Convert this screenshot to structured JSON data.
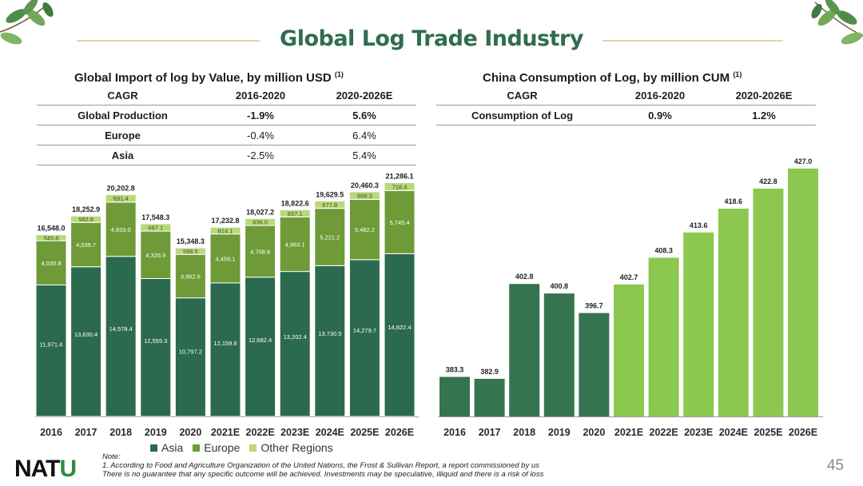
{
  "header": {
    "title": "Global Log Trade Industry"
  },
  "left": {
    "subtitle": "Global Import of log by Value, by million USD",
    "footnote_ref": "(1)",
    "table": {
      "headers": [
        "CAGR",
        "2016-2020",
        "2020-2026E"
      ],
      "rows": [
        [
          "Global Production",
          "-1.9%",
          "5.6%"
        ],
        [
          "Europe",
          "-0.4%",
          "6.4%"
        ],
        [
          "Asia",
          "-2.5%",
          "5.4%"
        ]
      ]
    }
  },
  "right": {
    "subtitle": "China Consumption of Log, by million CUM",
    "footnote_ref": "(1)",
    "table": {
      "headers": [
        "CAGR",
        "2016-2020",
        "2020-2026E"
      ],
      "rows": [
        [
          "Consumption of Log",
          "0.9%",
          "1.2%"
        ]
      ]
    }
  },
  "legend": {
    "asia": "Asia",
    "europe": "Europe",
    "other": "Other Regions"
  },
  "colors": {
    "asia": "#2b6a4f",
    "europe": "#6f9a38",
    "other": "#b7d979",
    "china_hist": "#36744f",
    "china_fore": "#8cc84f",
    "title": "#2f6d4f"
  },
  "chart_data": [
    {
      "type": "bar",
      "stacked": true,
      "title": "Global Import of log by Value, by million USD",
      "xlabel": "",
      "ylabel": "",
      "categories": [
        "2016",
        "2017",
        "2018",
        "2019",
        "2020",
        "2021E",
        "2022E",
        "2023E",
        "2024E",
        "2025E",
        "2026E"
      ],
      "series": [
        {
          "name": "Asia",
          "values": [
            11971.4,
            13630.4,
            14578.4,
            12555.3,
            10797.2,
            12159.6,
            12682.4,
            13202.4,
            13730.5,
            14279.7,
            14822.4
          ]
        },
        {
          "name": "Europe",
          "values": [
            4030.8,
            4039.7,
            4933.0,
            4325.9,
            3962.6,
            4459.1,
            4708.8,
            4963.1,
            5221.2,
            5482.2,
            5745.4
          ]
        },
        {
          "name": "Other Regions",
          "values": [
            545.8,
            582.8,
            691.4,
            667.1,
            588.5,
            614.1,
            636.0,
            657.1,
            677.8,
            698.3,
            718.4
          ]
        }
      ],
      "labels": {
        "Asia": [
          "11,971.4",
          "13,630.4",
          "14,578.4",
          "12,555.3",
          "10,797.2",
          "12,159.6",
          "12,682.4",
          "13,202.4",
          "13,730.5",
          "14,279.7",
          "14,822.4"
        ],
        "Europe": [
          "4,030.8",
          "4,039.7",
          "4,933.0",
          "4,325.9",
          "3,962.6",
          "4,459.1",
          "4,708.8",
          "4,963.1",
          "5,221.2",
          "5,482.2",
          "5,745.4"
        ],
        "Other Regions": [
          "545.8",
          "582.8",
          "691.4",
          "667.1",
          "588.5",
          "614.1",
          "636.0",
          "657.1",
          "677.8",
          "698.3",
          "718.4"
        ]
      },
      "totals": [
        "16,548.0",
        "18,252.9",
        "20,202.8",
        "17,548.3",
        "15,348.3",
        "17,232.8",
        "18,027.2",
        "18,822.6",
        "19,629.5",
        "20,460.3",
        "21,286.1"
      ],
      "ylim": [
        0,
        23000
      ]
    },
    {
      "type": "bar",
      "title": "China Consumption of Log, by million CUM",
      "xlabel": "",
      "ylabel": "",
      "categories": [
        "2016",
        "2017",
        "2018",
        "2019",
        "2020",
        "2021E",
        "2022E",
        "2023E",
        "2024E",
        "2025E",
        "2026E"
      ],
      "values": [
        383.3,
        382.9,
        402.8,
        400.8,
        396.7,
        402.7,
        408.3,
        413.6,
        418.6,
        422.8,
        427.0
      ],
      "labels": [
        "383.3",
        "382.9",
        "402.8",
        "400.8",
        "396.7",
        "402.7",
        "408.3",
        "413.6",
        "418.6",
        "422.8",
        "427.0"
      ],
      "forecast_from_index": 5,
      "ylim": [
        375,
        430
      ]
    }
  ],
  "footer": {
    "logo_main": "NAT",
    "logo_accent": "U",
    "note_label": "Note:",
    "note_1": "1.    According to Food and Agriculture Organization of the United Nations, the Frost & Sullivan Report, a report commissioned by us",
    "note_2": "There is no guarantee that any specific outcome will be achieved. Investments may be speculative, illiquid and there is a risk of loss",
    "page_number": "45"
  }
}
